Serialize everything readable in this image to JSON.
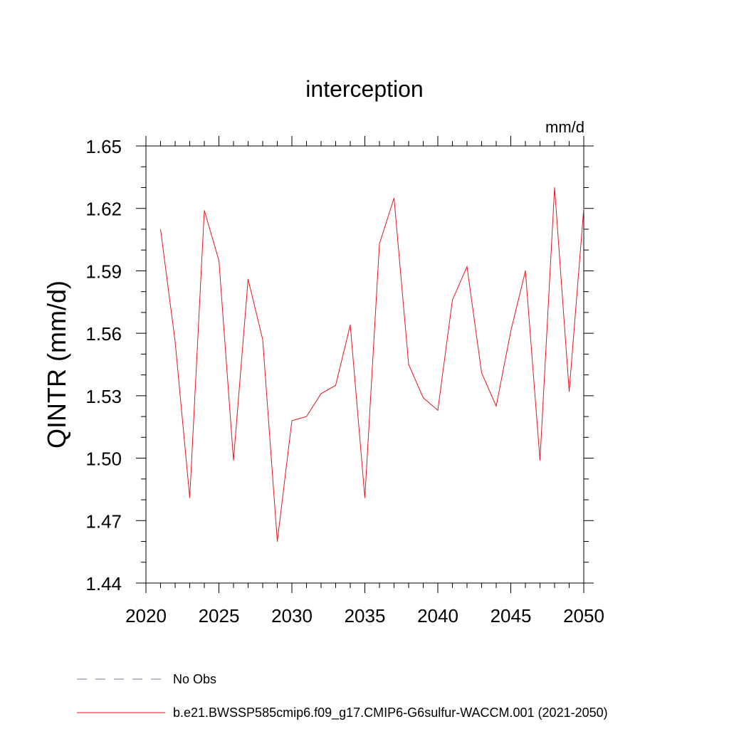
{
  "chart_data": {
    "type": "line",
    "title": "interception",
    "units_label": "mm/d",
    "ylabel": "QINTR  (mm/d)",
    "xlabel": "",
    "xlim": [
      2020,
      2050
    ],
    "ylim": [
      1.44,
      1.65
    ],
    "x_ticks": [
      "2020",
      "2025",
      "2030",
      "2035",
      "2040",
      "2045",
      "2050"
    ],
    "y_ticks": [
      "1.44",
      "1.47",
      "1.50",
      "1.53",
      "1.56",
      "1.59",
      "1.62",
      "1.65"
    ],
    "legend_position": "bottom",
    "legend": [
      {
        "label": "No Obs",
        "style": "dashed",
        "color": "#7b6fb0"
      },
      {
        "label": "b.e21.BWSSP585cmip6.f09_g17.CMIP6-G6sulfur-WACCM.001 (2021-2050)",
        "style": "solid",
        "color": "#e8141c"
      }
    ],
    "series": [
      {
        "name": "b.e21.BWSSP585cmip6.f09_g17.CMIP6-G6sulfur-WACCM.001 (2021-2050)",
        "color": "#e8141c",
        "x": [
          2021,
          2022,
          2023,
          2024,
          2025,
          2026,
          2027,
          2028,
          2029,
          2030,
          2031,
          2032,
          2033,
          2034,
          2035,
          2036,
          2037,
          2038,
          2039,
          2040,
          2041,
          2042,
          2043,
          2044,
          2045,
          2046,
          2047,
          2048,
          2049,
          2050
        ],
        "y": [
          1.61,
          1.556,
          1.481,
          1.619,
          1.595,
          1.499,
          1.586,
          1.557,
          1.46,
          1.518,
          1.52,
          1.531,
          1.535,
          1.564,
          1.481,
          1.603,
          1.625,
          1.545,
          1.529,
          1.523,
          1.576,
          1.592,
          1.541,
          1.525,
          1.561,
          1.59,
          1.499,
          1.63,
          1.532,
          1.62
        ]
      }
    ]
  }
}
